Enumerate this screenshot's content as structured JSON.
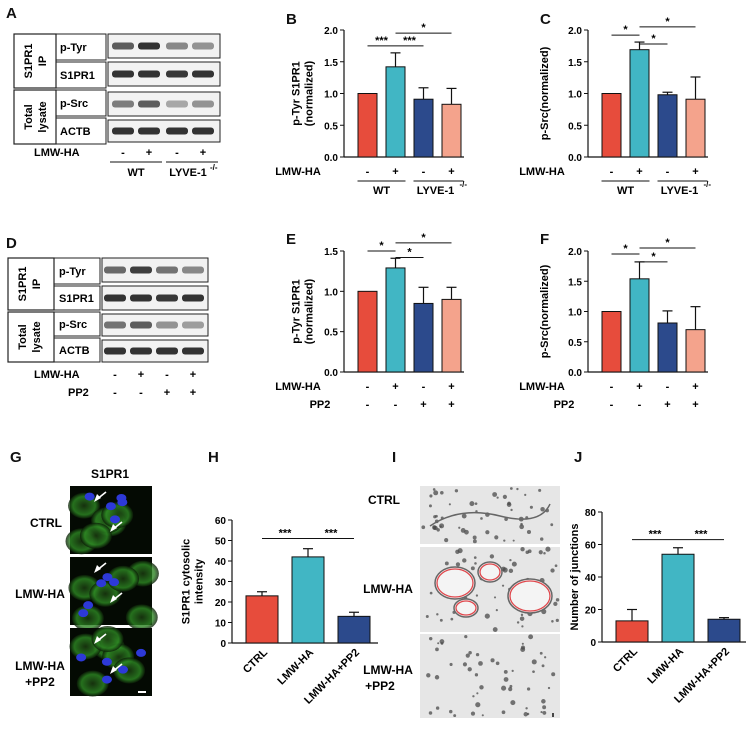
{
  "panel_letters": {
    "A": "A",
    "B": "B",
    "C": "C",
    "D": "D",
    "E": "E",
    "F": "F",
    "G": "G",
    "H": "H",
    "I": "I",
    "J": "J"
  },
  "colors": {
    "ctrl": "#e74c3c",
    "lmw": "#41b6c4",
    "lyve": "#2c4a8c",
    "lyve_lmw": "#f4a38c",
    "pp2": "#2c4a8c",
    "pp2_lmw": "#f4a38c",
    "blot_band": "#222222"
  },
  "blots": {
    "A": {
      "ip_label": "S1PR1 IP",
      "lysate_label": "Total lysate",
      "rows": [
        "p-Tyr",
        "S1PR1",
        "p-Src",
        "ACTB"
      ],
      "treat_name": "LMW-HA",
      "treat_signs": [
        "-",
        "+",
        "-",
        "+"
      ],
      "group1": "WT",
      "group2": "LYVE-1",
      "group2_sup": "-/-"
    },
    "D": {
      "ip_label": "S1PR1 IP",
      "lysate_label": "Total lysate",
      "rows": [
        "p-Tyr",
        "S1PR1",
        "p-Src",
        "ACTB"
      ],
      "treat1_name": "LMW-HA",
      "treat1_signs": [
        "-",
        "+",
        "-",
        "+"
      ],
      "treat2_name": "PP2",
      "treat2_signs": [
        "-",
        "-",
        "+",
        "+"
      ]
    }
  },
  "chart_data": [
    {
      "panel": "B",
      "type": "bar",
      "ylabel": "p-Tyr S1PR1 (normalized)",
      "ylabel_lines": [
        "p-Tyr S1PR1",
        "(normalized)"
      ],
      "ylim": [
        0,
        2.0
      ],
      "yticks": [
        "0.0",
        "0.5",
        "1.0",
        "1.5",
        "2.0"
      ],
      "values": [
        1.0,
        1.42,
        0.91,
        0.83
      ],
      "errors": [
        0,
        0.22,
        0.18,
        0.25
      ],
      "colors": [
        "#e74c3c",
        "#41b6c4",
        "#2c4a8c",
        "#f4a38c"
      ],
      "sign_rows": [
        {
          "label": "LMW-HA",
          "signs": [
            "-",
            "+",
            "-",
            "+"
          ]
        }
      ],
      "groups": [
        "WT",
        "LYVE-1"
      ],
      "group_sup": "-/-",
      "sig": [
        {
          "from": 0,
          "to": 1,
          "label": "***",
          "y": 1.75
        },
        {
          "from": 1,
          "to": 2,
          "label": "***",
          "y": 1.75
        },
        {
          "from": 1,
          "to": 3,
          "label": "*",
          "y": 1.95
        }
      ]
    },
    {
      "panel": "C",
      "type": "bar",
      "ylabel": "p-Src(normalized)",
      "ylabel_lines": [
        "p-Src(normalized)"
      ],
      "ylim": [
        0,
        2.0
      ],
      "yticks": [
        "0.0",
        "0.5",
        "1.0",
        "1.5",
        "2.0"
      ],
      "values": [
        1.0,
        1.69,
        0.98,
        0.91
      ],
      "errors": [
        0,
        0.12,
        0.04,
        0.35
      ],
      "colors": [
        "#e74c3c",
        "#41b6c4",
        "#2c4a8c",
        "#f4a38c"
      ],
      "sign_rows": [
        {
          "label": "LMW-HA",
          "signs": [
            "-",
            "+",
            "-",
            "+"
          ]
        }
      ],
      "groups": [
        "WT",
        "LYVE-1"
      ],
      "group_sup": "-/-",
      "sig": [
        {
          "from": 0,
          "to": 1,
          "label": "*",
          "y": 1.92
        },
        {
          "from": 1,
          "to": 2,
          "label": "*",
          "y": 1.78
        },
        {
          "from": 1,
          "to": 3,
          "label": "*",
          "y": 2.05
        }
      ]
    },
    {
      "panel": "E",
      "type": "bar",
      "ylabel": "p-Tyr S1PR1 (normalized)",
      "ylabel_lines": [
        "p-Tyr S1PR1",
        "(normalized)"
      ],
      "ylim": [
        0,
        1.5
      ],
      "yticks": [
        "0.0",
        "0.5",
        "1.0",
        "1.5"
      ],
      "values": [
        1.0,
        1.29,
        0.85,
        0.9
      ],
      "errors": [
        0,
        0.12,
        0.2,
        0.15
      ],
      "colors": [
        "#e74c3c",
        "#41b6c4",
        "#2c4a8c",
        "#f4a38c"
      ],
      "sign_rows": [
        {
          "label": "LMW-HA",
          "signs": [
            "-",
            "+",
            "-",
            "+"
          ]
        },
        {
          "label": "PP2",
          "signs": [
            "-",
            "-",
            "+",
            "+"
          ]
        }
      ],
      "sig": [
        {
          "from": 0,
          "to": 1,
          "label": "*",
          "y": 1.5
        },
        {
          "from": 1,
          "to": 2,
          "label": "*",
          "y": 1.42
        },
        {
          "from": 1,
          "to": 3,
          "label": "*",
          "y": 1.6
        }
      ]
    },
    {
      "panel": "F",
      "type": "bar",
      "ylabel": "p-Src(normalized)",
      "ylabel_lines": [
        "p-Src(normalized)"
      ],
      "ylim": [
        0,
        2.0
      ],
      "yticks": [
        "0.0",
        "0.5",
        "1.0",
        "1.5",
        "2.0"
      ],
      "values": [
        1.0,
        1.54,
        0.81,
        0.7
      ],
      "errors": [
        0,
        0.28,
        0.2,
        0.38
      ],
      "colors": [
        "#e74c3c",
        "#41b6c4",
        "#2c4a8c",
        "#f4a38c"
      ],
      "sign_rows": [
        {
          "label": "LMW-HA",
          "signs": [
            "-",
            "+",
            "-",
            "+"
          ]
        },
        {
          "label": "PP2",
          "signs": [
            "-",
            "-",
            "+",
            "+"
          ]
        }
      ],
      "sig": [
        {
          "from": 0,
          "to": 1,
          "label": "*",
          "y": 1.95
        },
        {
          "from": 1,
          "to": 2,
          "label": "*",
          "y": 1.82
        },
        {
          "from": 1,
          "to": 3,
          "label": "*",
          "y": 2.05
        }
      ]
    },
    {
      "panel": "H",
      "type": "bar",
      "ylabel": "S1PR1 cytosolic intensity",
      "ylabel_lines": [
        "S1PR1 cytosolic",
        "intensity"
      ],
      "ylim": [
        0,
        60
      ],
      "yticks": [
        "0",
        "10",
        "20",
        "30",
        "40",
        "50",
        "60"
      ],
      "categories": [
        "CTRL",
        "LMW-HA",
        "LMW-HA+PP2"
      ],
      "values": [
        23,
        42,
        13
      ],
      "errors": [
        2,
        4,
        2
      ],
      "colors": [
        "#e74c3c",
        "#41b6c4",
        "#2c4a8c"
      ],
      "sig": [
        {
          "from": 0,
          "to": 1,
          "label": "***",
          "y": 51
        },
        {
          "from": 1,
          "to": 2,
          "label": "***",
          "y": 51
        }
      ]
    },
    {
      "panel": "J",
      "type": "bar",
      "ylabel": "Number of junctions",
      "ylabel_lines": [
        "Number of junctions"
      ],
      "ylim": [
        0,
        80
      ],
      "yticks": [
        "0",
        "20",
        "40",
        "60",
        "80"
      ],
      "categories": [
        "CTRL",
        "LMW-HA",
        "LMW-HA+PP2"
      ],
      "values": [
        13,
        54,
        14
      ],
      "errors": [
        7,
        4,
        1
      ],
      "colors": [
        "#e74c3c",
        "#41b6c4",
        "#2c4a8c"
      ],
      "sig": [
        {
          "from": 0,
          "to": 1,
          "label": "***",
          "y": 63
        },
        {
          "from": 1,
          "to": 2,
          "label": "***",
          "y": 63
        }
      ]
    }
  ],
  "micrographs": {
    "G": {
      "title": "S1PR1",
      "labels": [
        "CTRL",
        "LMW-HA",
        "LMW-HA\n+PP2"
      ]
    },
    "I": {
      "labels": [
        "CTRL",
        "LMW-HA",
        "LMW-HA\n+PP2"
      ]
    }
  }
}
